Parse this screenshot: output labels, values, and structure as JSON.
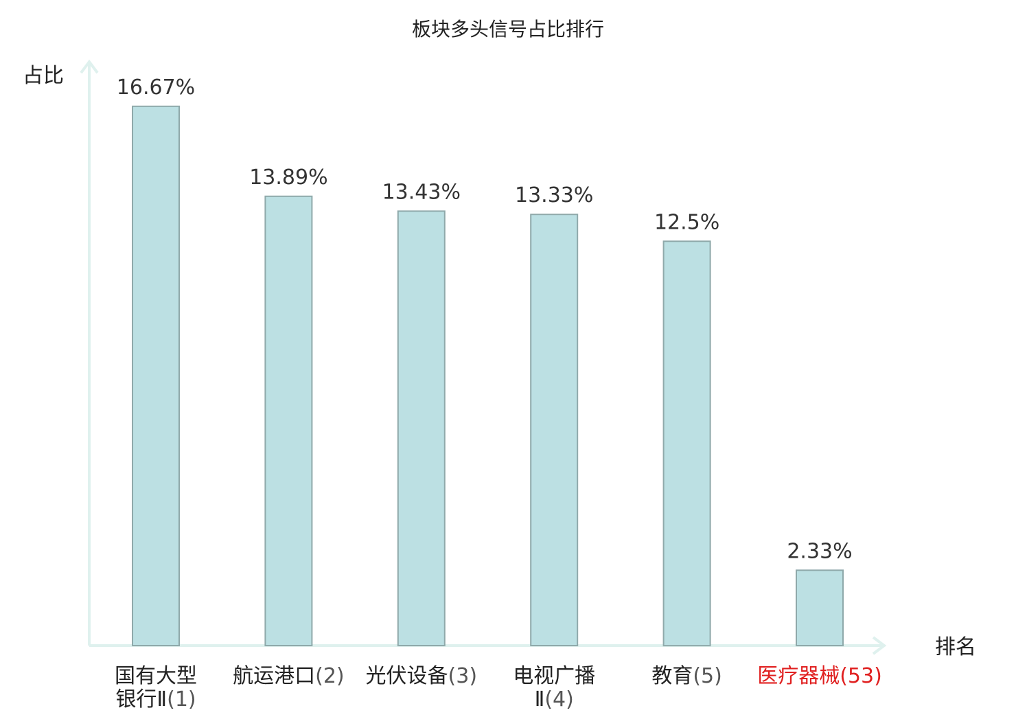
{
  "chart_data": {
    "type": "bar",
    "title": "板块多头信号占比排行",
    "ylabel": "占比",
    "xlabel": "排名",
    "ylim": [
      0,
      18
    ],
    "grid": false,
    "legend": "none",
    "categories": [
      {
        "name_lines": [
          "国有大型",
          "银行Ⅱ"
        ],
        "rank": "(1)",
        "highlight": false
      },
      {
        "name_lines": [
          "航运港口"
        ],
        "rank": "(2)",
        "highlight": false
      },
      {
        "name_lines": [
          "光伏设备"
        ],
        "rank": "(3)",
        "highlight": false
      },
      {
        "name_lines": [
          "电视广播",
          "Ⅱ"
        ],
        "rank": "(4)",
        "highlight": false
      },
      {
        "name_lines": [
          "教育"
        ],
        "rank": "(5)",
        "highlight": false
      },
      {
        "name_lines": [
          "医疗器械"
        ],
        "rank": "(53)",
        "highlight": true
      }
    ],
    "values": [
      16.67,
      13.89,
      13.43,
      13.33,
      12.5,
      2.33
    ],
    "value_labels": [
      "16.67%",
      "13.89%",
      "13.43%",
      "13.33%",
      "12.5%",
      "2.33%"
    ]
  },
  "colors": {
    "bar_fill": "#bce0e3",
    "bar_stroke": "#8fa9aa",
    "axis": "#dff1ee",
    "text": "#222222",
    "rank_text": "#555555",
    "highlight": "#e02020"
  }
}
